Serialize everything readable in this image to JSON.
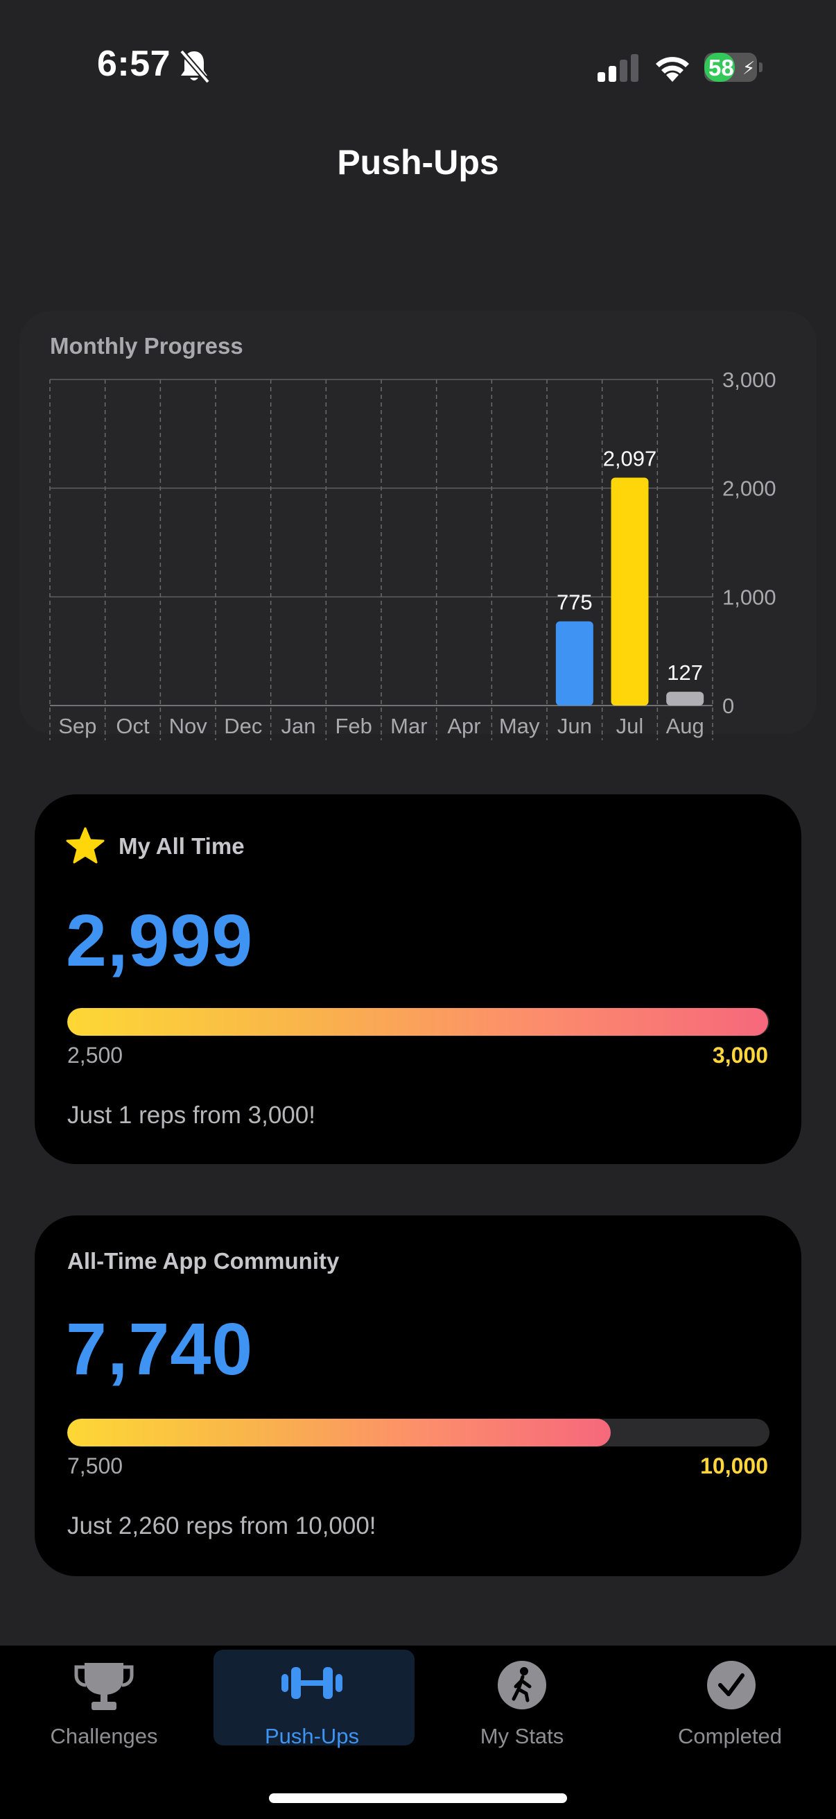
{
  "status_bar": {
    "time": "6:57",
    "battery": "58",
    "battery_level": 0.58,
    "icons": [
      "bell-slash-icon",
      "cellular-signal-icon",
      "wifi-icon",
      "battery-charging-icon"
    ]
  },
  "page": {
    "title": "Push-Ups"
  },
  "chart_data": {
    "type": "bar",
    "title": "Monthly Progress",
    "categories": [
      "Sep",
      "Oct",
      "Nov",
      "Dec",
      "Jan",
      "Feb",
      "Mar",
      "Apr",
      "May",
      "Jun",
      "Jul",
      "Aug"
    ],
    "values": [
      0,
      0,
      0,
      0,
      0,
      0,
      0,
      0,
      0,
      775,
      2097,
      127
    ],
    "data_labels": [
      "",
      "",
      "",
      "",
      "",
      "",
      "",
      "",
      "",
      "775",
      "2,097",
      "127"
    ],
    "bar_colors": [
      "#3f93f2",
      "#3f93f2",
      "#3f93f2",
      "#3f93f2",
      "#3f93f2",
      "#3f93f2",
      "#3f93f2",
      "#3f93f2",
      "#3f93f2",
      "#3f93f2",
      "#ffd60a",
      "#b0b0b4"
    ],
    "y_ticks": [
      0,
      1000,
      2000,
      3000
    ],
    "y_tick_labels": [
      "0",
      "1,000",
      "2,000",
      "3,000"
    ],
    "ylim": [
      0,
      3000
    ],
    "y_axis_position": "right",
    "grid": true,
    "xlabel": "",
    "ylabel": ""
  },
  "my_all_time": {
    "heading": "My All Time",
    "icon": "star-icon",
    "value": "2,999",
    "range_min": "2,500",
    "range_max": "3,000",
    "progress": 0.998,
    "message": "Just 1 reps from 3,000!"
  },
  "community": {
    "heading": "All-Time App Community",
    "value": "7,740",
    "range_min": "7,500",
    "range_max": "10,000",
    "progress": 0.774,
    "message": "Just 2,260 reps from 10,000!"
  },
  "tabs": [
    {
      "label": "Challenges",
      "icon": "trophy-icon",
      "active": false
    },
    {
      "label": "Push-Ups",
      "icon": "dumbbell-icon",
      "active": true
    },
    {
      "label": "My Stats",
      "icon": "figure-walk-icon",
      "active": false
    },
    {
      "label": "Completed",
      "icon": "checkmark-circle-icon",
      "active": false
    }
  ],
  "colors": {
    "accent_blue": "#3f93f2",
    "accent_yellow": "#ffd60a",
    "background": "#232325",
    "card": "#000000"
  }
}
